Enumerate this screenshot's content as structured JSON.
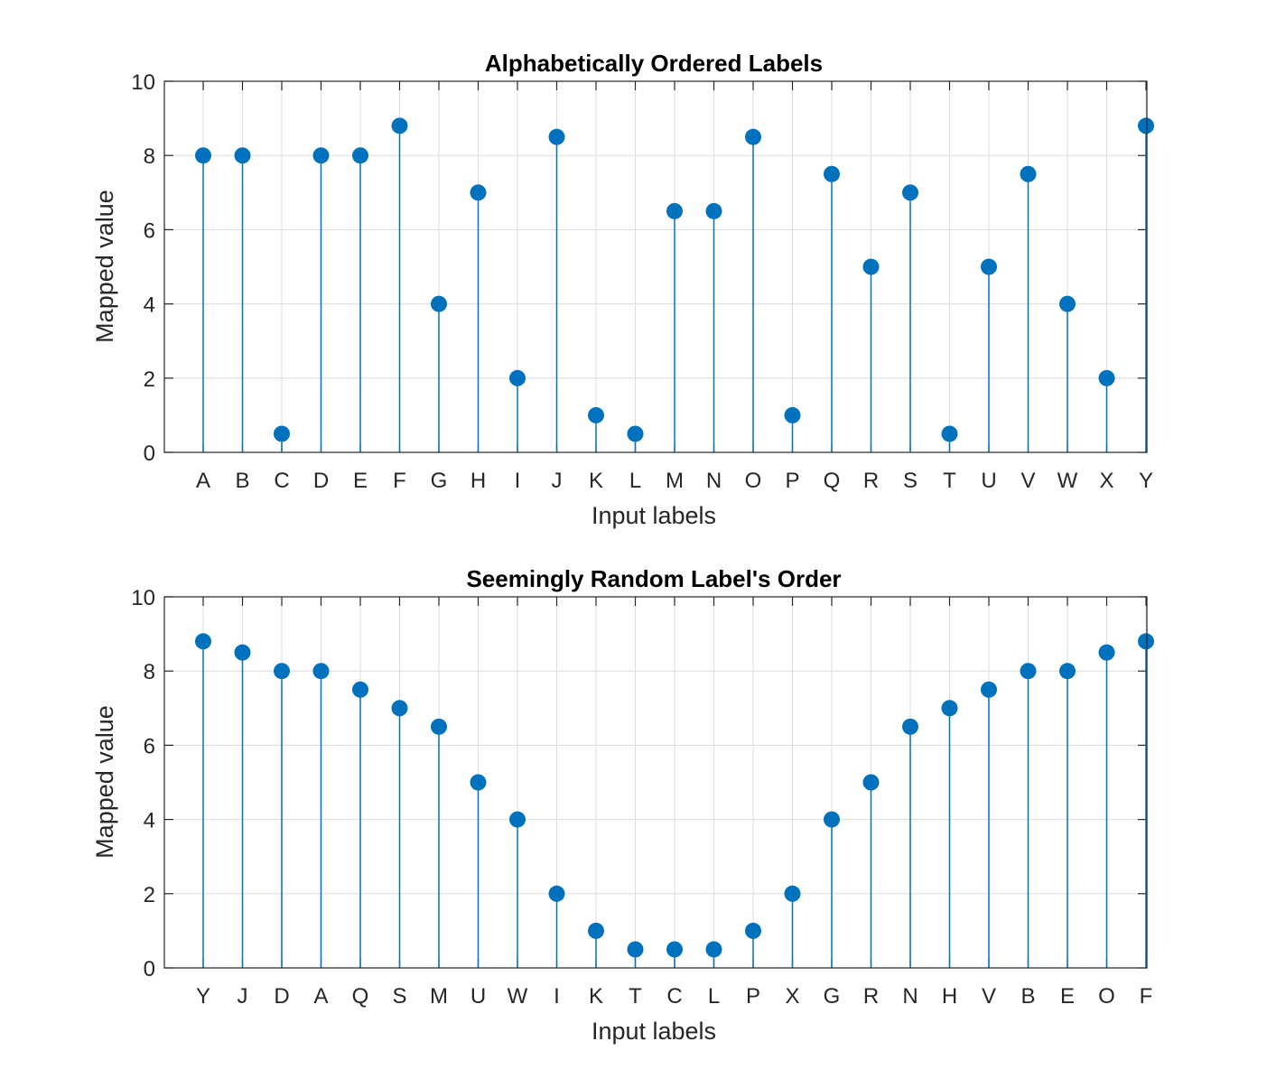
{
  "colors": {
    "stem": "#0072BD",
    "axis": "#262626",
    "grid": "#dcdcdc"
  },
  "chart_data": [
    {
      "type": "stem",
      "title": "Alphabetically Ordered Labels",
      "xlabel": "Input labels",
      "ylabel": "Mapped value",
      "ylim": [
        0,
        10
      ],
      "yticks": [
        0,
        2,
        4,
        6,
        8,
        10
      ],
      "grid": true,
      "categories": [
        "A",
        "B",
        "C",
        "D",
        "E",
        "F",
        "G",
        "H",
        "I",
        "J",
        "K",
        "L",
        "M",
        "N",
        "O",
        "P",
        "Q",
        "R",
        "S",
        "T",
        "U",
        "V",
        "W",
        "X",
        "Y"
      ],
      "values": [
        8,
        8,
        0.5,
        8,
        8,
        8.8,
        4,
        7,
        2,
        8.5,
        1,
        0.5,
        6.5,
        6.5,
        8.5,
        1,
        7.5,
        5,
        7,
        0.5,
        5,
        7.5,
        4,
        2,
        8.8
      ]
    },
    {
      "type": "stem",
      "title": "Seemingly Random Label's Order",
      "xlabel": "Input labels",
      "ylabel": "Mapped value",
      "ylim": [
        0,
        10
      ],
      "yticks": [
        0,
        2,
        4,
        6,
        8,
        10
      ],
      "grid": true,
      "categories": [
        "Y",
        "J",
        "D",
        "A",
        "Q",
        "S",
        "M",
        "U",
        "W",
        "I",
        "K",
        "T",
        "C",
        "L",
        "P",
        "X",
        "G",
        "R",
        "N",
        "H",
        "V",
        "B",
        "E",
        "O",
        "F"
      ],
      "values": [
        8.8,
        8.5,
        8,
        8,
        7.5,
        7,
        6.5,
        5,
        4,
        2,
        1,
        0.5,
        0.5,
        0.5,
        1,
        2,
        4,
        5,
        6.5,
        7,
        7.5,
        8,
        8,
        8.5,
        8.8
      ]
    }
  ]
}
